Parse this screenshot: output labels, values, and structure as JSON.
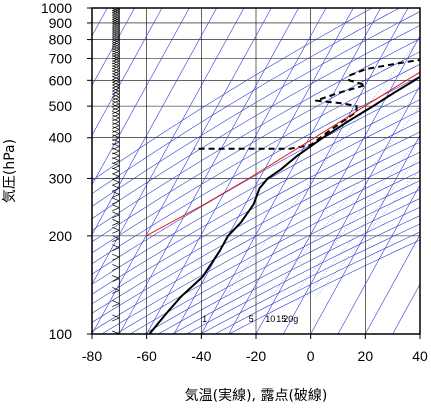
{
  "chart_data": {
    "type": "line",
    "title": "",
    "xlabel": "気温(実線), 露点(破線)",
    "ylabel": "気圧(hPa)",
    "xlim": [
      -80,
      40
    ],
    "ylim_pressure": [
      1000,
      100
    ],
    "y_scale": "log",
    "x_ticks": [
      -80,
      -60,
      -40,
      -20,
      0,
      20,
      40
    ],
    "x_tick_labels": [
      "-80",
      "-60",
      "-40",
      "-20",
      "0",
      "20",
      "40"
    ],
    "y_ticks": [
      100,
      200,
      300,
      400,
      500,
      600,
      700,
      800,
      900,
      1000
    ],
    "y_tick_labels": [
      "100",
      "200",
      "300",
      "400",
      "500",
      "600",
      "700",
      "800",
      "900",
      "1000"
    ],
    "grid": true,
    "mixing_ratio_labels": [
      {
        "text": "1",
        "temp": -42,
        "p": 112
      },
      {
        "text": "5",
        "temp": -25,
        "p": 112
      },
      {
        "text": "10",
        "temp": -18,
        "p": 112
      },
      {
        "text": "15",
        "temp": -14,
        "p": 112
      },
      {
        "text": "20g",
        "temp": -10.5,
        "p": 112
      }
    ],
    "series": [
      {
        "style": "solid",
        "color": "#000000",
        "points": [
          {
            "p": 1000,
            "t": 13
          },
          {
            "p": 950,
            "t": 11
          },
          {
            "p": 900,
            "t": 8
          },
          {
            "p": 850,
            "t": 5
          },
          {
            "p": 800,
            "t": 2
          },
          {
            "p": 750,
            "t": -2
          },
          {
            "p": 700,
            "t": -5
          },
          {
            "p": 650,
            "t": -9
          },
          {
            "p": 600,
            "t": -13
          },
          {
            "p": 550,
            "t": -18
          },
          {
            "p": 500,
            "t": -23
          },
          {
            "p": 450,
            "t": -29
          },
          {
            "p": 400,
            "t": -35
          },
          {
            "p": 350,
            "t": -41
          },
          {
            "p": 320,
            "t": -44
          },
          {
            "p": 300,
            "t": -47
          },
          {
            "p": 280,
            "t": -48
          },
          {
            "p": 250,
            "t": -47
          },
          {
            "p": 220,
            "t": -48
          },
          {
            "p": 200,
            "t": -50
          },
          {
            "p": 180,
            "t": -50
          },
          {
            "p": 150,
            "t": -51
          },
          {
            "p": 130,
            "t": -55
          },
          {
            "p": 115,
            "t": -57
          },
          {
            "p": 100,
            "t": -59
          }
        ]
      },
      {
        "style": "dashed",
        "color": "#000000",
        "points": [
          {
            "p": 1000,
            "t": 11
          },
          {
            "p": 950,
            "t": 8
          },
          {
            "p": 900,
            "t": 5
          },
          {
            "p": 850,
            "t": 2
          },
          {
            "p": 800,
            "t": -2
          },
          {
            "p": 750,
            "t": -5
          },
          {
            "p": 720,
            "t": -9
          },
          {
            "p": 700,
            "t": -12
          },
          {
            "p": 680,
            "t": -21
          },
          {
            "p": 650,
            "t": -33
          },
          {
            "p": 620,
            "t": -38
          },
          {
            "p": 600,
            "t": -37
          },
          {
            "p": 580,
            "t": -30
          },
          {
            "p": 550,
            "t": -38
          },
          {
            "p": 520,
            "t": -45
          },
          {
            "p": 510,
            "t": -35
          },
          {
            "p": 500,
            "t": -29
          },
          {
            "p": 480,
            "t": -28
          },
          {
            "p": 450,
            "t": -31
          },
          {
            "p": 420,
            "t": -34
          },
          {
            "p": 400,
            "t": -36
          },
          {
            "p": 380,
            "t": -38
          },
          {
            "p": 370,
            "t": -45
          },
          {
            "p": 370,
            "t": -80
          }
        ]
      },
      {
        "style": "solid",
        "color": "#e31a1c",
        "points": [
          {
            "p": 1000,
            "t": 15
          },
          {
            "p": 900,
            "t": 8
          },
          {
            "p": 800,
            "t": 1
          },
          {
            "p": 700,
            "t": -7
          },
          {
            "p": 600,
            "t": -16
          },
          {
            "p": 500,
            "t": -26
          },
          {
            "p": 400,
            "t": -38
          },
          {
            "p": 300,
            "t": -54
          },
          {
            "p": 250,
            "t": -65
          },
          {
            "p": 200,
            "t": -80
          }
        ]
      }
    ]
  }
}
